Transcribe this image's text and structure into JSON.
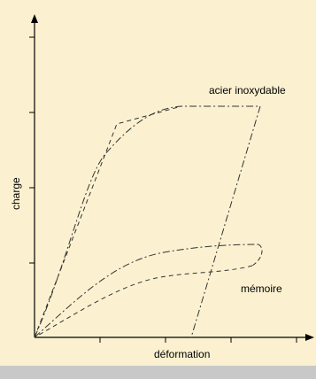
{
  "colors": {
    "background": "#fbf1d0",
    "footer_bar": "#c8c8c8",
    "curve": "#333333",
    "axis": "#000000"
  },
  "axes": {
    "xlabel": "déformation",
    "ylabel": "charge"
  },
  "curves": {
    "steel_label": "acier inoxydable",
    "shape_memory_label": "mémoire"
  }
}
